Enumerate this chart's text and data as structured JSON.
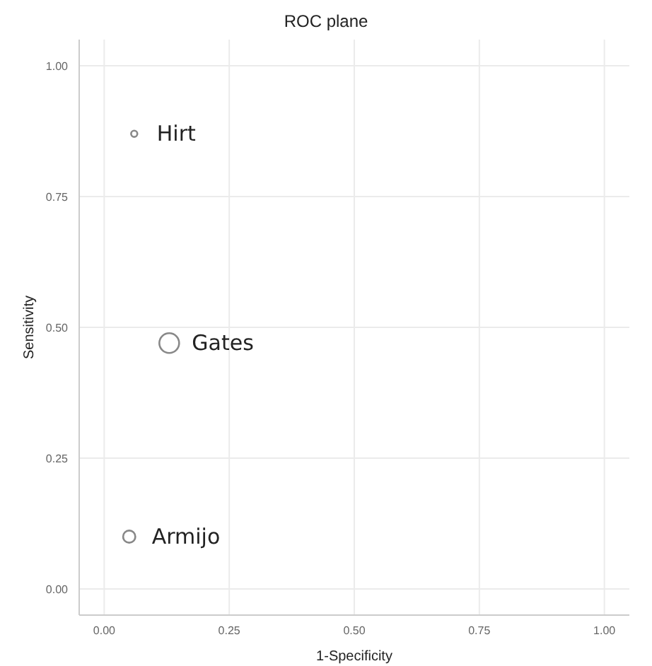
{
  "chart_data": {
    "type": "bubble",
    "title": "ROC plane",
    "xlabel": "1-Specificity",
    "ylabel": "Sensitivity",
    "series": [
      {
        "name": "Hirt",
        "color": "#888888",
        "x": [
          0.06
        ],
        "values": [
          0.87
        ],
        "sizes": [
          0.1
        ]
      },
      {
        "name": "Gates",
        "color": "#888888",
        "x": [
          0.13
        ],
        "values": [
          0.47
        ],
        "sizes": [
          1
        ]
      },
      {
        "name": "Armijo",
        "color": "#888888",
        "x": [
          0.05
        ],
        "values": [
          0.1
        ],
        "sizes": [
          0.38
        ]
      }
    ],
    "xlim": [
      -0.05,
      1.05
    ],
    "ylim": [
      -0.05,
      1.05
    ],
    "xticks": [
      {
        "value": 0,
        "label": "0.00"
      },
      {
        "value": 0.25,
        "label": "0.25"
      },
      {
        "value": 0.5,
        "label": "0.50"
      },
      {
        "value": 0.75,
        "label": "0.75"
      },
      {
        "value": 1,
        "label": "1.00"
      }
    ],
    "yticks": [
      {
        "value": 0,
        "label": "0.00"
      },
      {
        "value": 0.25,
        "label": "0.25"
      },
      {
        "value": 0.5,
        "label": "0.50"
      },
      {
        "value": 0.75,
        "label": "0.75"
      },
      {
        "value": 1,
        "label": "1.00"
      }
    ],
    "grid": true,
    "legend": false,
    "marker": "circle"
  }
}
